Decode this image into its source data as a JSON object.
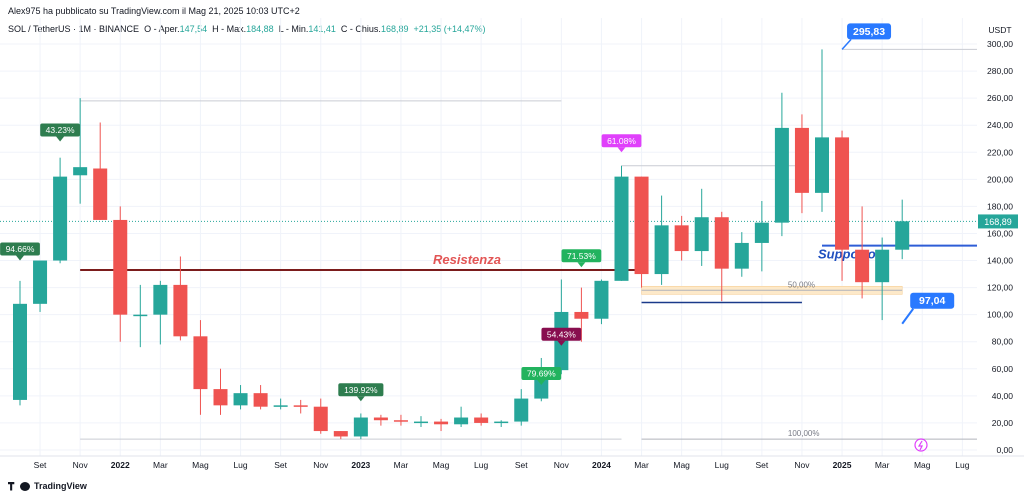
{
  "header": {
    "publisher": "Alex975 ha pubblicato su TradingView.com il Mag 21, 2025 10:03 UTC+2",
    "symbol": "SOL / TetherUS · 1M · BINANCE",
    "open_label": "O - Aper.",
    "open_value": "147,54",
    "high_label": "H - Max.",
    "high_value": "184,88",
    "low_label": "L - Min.",
    "low_value": "141,41",
    "close_label": "C - Chius.",
    "close_value": "168,89",
    "change_value": "+21,35 (+14,47%)"
  },
  "footer": {
    "brand": "TradingView"
  },
  "colors": {
    "up": "#26a69a",
    "down": "#ef5350",
    "resistance": "#7b1c1c",
    "support": "#2e5dd6",
    "fib_zone": "#fde9c9"
  },
  "chart_data": {
    "type": "candlestick",
    "currency_label": "USDT",
    "ylim": [
      -5,
      305
    ],
    "y_ticks": [
      0,
      20,
      40,
      60,
      80,
      100,
      120,
      140,
      160,
      180,
      200,
      220,
      240,
      260,
      280,
      300
    ],
    "y_tick_labels": [
      "0,00",
      "20,00",
      "40,00",
      "60,00",
      "80,00",
      "100,00",
      "120,00",
      "140,00",
      "160,00",
      "180,00",
      "200,00",
      "220,00",
      "240,00",
      "260,00",
      "280,00",
      "300,00"
    ],
    "x_labels": [
      {
        "i": 1,
        "label": "Set"
      },
      {
        "i": 3,
        "label": "Nov"
      },
      {
        "i": 5,
        "label": "2022",
        "bold": true
      },
      {
        "i": 7,
        "label": "Mar"
      },
      {
        "i": 9,
        "label": "Mag"
      },
      {
        "i": 11,
        "label": "Lug"
      },
      {
        "i": 13,
        "label": "Set"
      },
      {
        "i": 15,
        "label": "Nov"
      },
      {
        "i": 17,
        "label": "2023",
        "bold": true
      },
      {
        "i": 19,
        "label": "Mar"
      },
      {
        "i": 21,
        "label": "Mag"
      },
      {
        "i": 23,
        "label": "Lug"
      },
      {
        "i": 25,
        "label": "Set"
      },
      {
        "i": 27,
        "label": "Nov"
      },
      {
        "i": 29,
        "label": "2024",
        "bold": true
      },
      {
        "i": 31,
        "label": "Mar"
      },
      {
        "i": 33,
        "label": "Mag"
      },
      {
        "i": 35,
        "label": "Lug"
      },
      {
        "i": 37,
        "label": "Set"
      },
      {
        "i": 39,
        "label": "Nov"
      },
      {
        "i": 41,
        "label": "2025",
        "bold": true
      },
      {
        "i": 43,
        "label": "Mar"
      },
      {
        "i": 45,
        "label": "Mag"
      },
      {
        "i": 47,
        "label": "Lug"
      }
    ],
    "candles": [
      {
        "o": 37,
        "h": 125,
        "l": 33,
        "c": 108
      },
      {
        "o": 108,
        "h": 140,
        "l": 102,
        "c": 140
      },
      {
        "o": 140,
        "h": 216,
        "l": 138,
        "c": 202
      },
      {
        "o": 203,
        "h": 260,
        "l": 182,
        "c": 209
      },
      {
        "o": 208,
        "h": 242,
        "l": 170,
        "c": 170
      },
      {
        "o": 170,
        "h": 180,
        "l": 80,
        "c": 100
      },
      {
        "o": 100,
        "h": 122,
        "l": 76,
        "c": 100
      },
      {
        "o": 100,
        "h": 125,
        "l": 78,
        "c": 122
      },
      {
        "o": 122,
        "h": 143,
        "l": 81,
        "c": 84
      },
      {
        "o": 84,
        "h": 96,
        "l": 26,
        "c": 45
      },
      {
        "o": 45,
        "h": 60,
        "l": 26,
        "c": 33
      },
      {
        "o": 33,
        "h": 48,
        "l": 30,
        "c": 42
      },
      {
        "o": 42,
        "h": 48,
        "l": 30,
        "c": 32
      },
      {
        "o": 32,
        "h": 38,
        "l": 30,
        "c": 33
      },
      {
        "o": 33,
        "h": 37,
        "l": 27,
        "c": 32
      },
      {
        "o": 32,
        "h": 38,
        "l": 12,
        "c": 14
      },
      {
        "o": 14,
        "h": 14,
        "l": 8,
        "c": 10
      },
      {
        "o": 10,
        "h": 27,
        "l": 8,
        "c": 24
      },
      {
        "o": 24,
        "h": 26,
        "l": 18,
        "c": 22
      },
      {
        "o": 22,
        "h": 26,
        "l": 18,
        "c": 21
      },
      {
        "o": 21,
        "h": 25,
        "l": 17,
        "c": 21
      },
      {
        "o": 21,
        "h": 23,
        "l": 14,
        "c": 19
      },
      {
        "o": 19,
        "h": 32,
        "l": 17,
        "c": 24
      },
      {
        "o": 24,
        "h": 27,
        "l": 18,
        "c": 20
      },
      {
        "o": 20,
        "h": 22,
        "l": 17,
        "c": 21
      },
      {
        "o": 21,
        "h": 45,
        "l": 18,
        "c": 38
      },
      {
        "o": 38,
        "h": 68,
        "l": 36,
        "c": 59
      },
      {
        "o": 59,
        "h": 126,
        "l": 56,
        "c": 102
      },
      {
        "o": 102,
        "h": 120,
        "l": 80,
        "c": 97
      },
      {
        "o": 97,
        "h": 126,
        "l": 93,
        "c": 125
      },
      {
        "o": 125,
        "h": 210,
        "l": 125,
        "c": 202
      },
      {
        "o": 202,
        "h": 202,
        "l": 120,
        "c": 130
      },
      {
        "o": 130,
        "h": 188,
        "l": 122,
        "c": 166
      },
      {
        "o": 166,
        "h": 173,
        "l": 140,
        "c": 147
      },
      {
        "o": 147,
        "h": 193,
        "l": 136,
        "c": 172
      },
      {
        "o": 172,
        "h": 176,
        "l": 110,
        "c": 134
      },
      {
        "o": 134,
        "h": 161,
        "l": 128,
        "c": 153
      },
      {
        "o": 153,
        "h": 184,
        "l": 132,
        "c": 168
      },
      {
        "o": 168,
        "h": 264,
        "l": 158,
        "c": 238
      },
      {
        "o": 238,
        "h": 248,
        "l": 175,
        "c": 190
      },
      {
        "o": 190,
        "h": 296,
        "l": 176,
        "c": 231
      },
      {
        "o": 231,
        "h": 236,
        "l": 125,
        "c": 148
      },
      {
        "o": 148,
        "h": 180,
        "l": 112,
        "c": 124
      },
      {
        "o": 124,
        "h": 157,
        "l": 96,
        "c": 148
      },
      {
        "o": 148,
        "h": 185,
        "l": 141,
        "c": 169
      }
    ],
    "last_price": {
      "value": 168.89,
      "label": "168,89"
    },
    "resistance": {
      "label": "Resistenza",
      "value": 133,
      "from_i": 3,
      "to_i": 31
    },
    "support": {
      "label": "Supporto",
      "value": 151,
      "from_i": 40
    },
    "blue_segment": {
      "value": 109,
      "from_i": 31,
      "to_i": 39
    },
    "fib_levels": [
      {
        "label": "50,00%",
        "value": 118,
        "from_i": 31,
        "to_i": 44
      },
      {
        "label": "100,00%",
        "value": 8,
        "from_i": 31,
        "to_i": 49
      }
    ],
    "fib_zone": {
      "from_i": 31,
      "to_i": 44,
      "low": 115,
      "high": 121
    },
    "guide_lines": [
      {
        "value": 296,
        "from_i": 41,
        "to_i": 50
      },
      {
        "value": 210,
        "from_i": 30,
        "to_i": 39
      },
      {
        "value": 258,
        "from_i": 3,
        "to_i": 27
      },
      {
        "value": 8,
        "from_i": 3,
        "to_i": 30
      }
    ],
    "percent_labels": [
      {
        "label": "94.66%",
        "i": 0,
        "y": 140,
        "color": "#2e7d4f"
      },
      {
        "label": "43.23%",
        "i": 2,
        "y": 228,
        "color": "#2e7d4f"
      },
      {
        "label": "139.92%",
        "i": 17,
        "y": 36,
        "color": "#2e7d4f"
      },
      {
        "label": "79.69%",
        "i": 26,
        "y": 48,
        "color": "#22b35e"
      },
      {
        "label": "54.43%",
        "i": 27,
        "y": 77,
        "color": "#880e4f"
      },
      {
        "label": "71.53%",
        "i": 28,
        "y": 135,
        "color": "#22b35e"
      },
      {
        "label": "61.08%",
        "i": 30,
        "y": 220,
        "color": "#e040fb"
      }
    ],
    "callouts": [
      {
        "label": "295,83",
        "i": 41,
        "y": 296,
        "dir": "down-left"
      },
      {
        "label": "97,04",
        "i": 44,
        "y": 97,
        "dir": "up-left"
      }
    ]
  }
}
